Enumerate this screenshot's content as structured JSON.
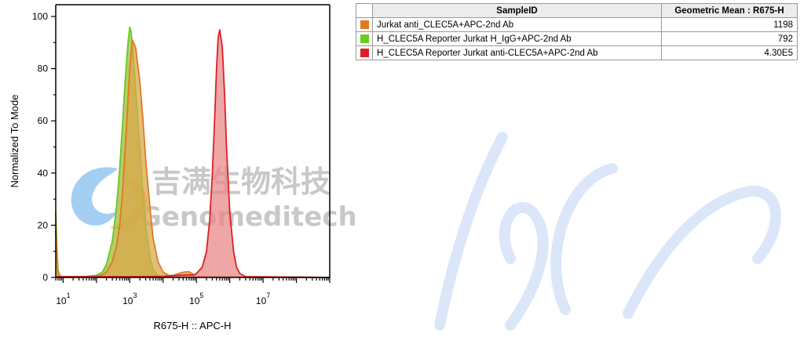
{
  "watermark": {
    "chinese": "吉满生物科技",
    "english": "Genomeditech"
  },
  "table": {
    "headers": {
      "sample": "SampleID",
      "value": "Geometric Mean : R675-H"
    },
    "rows": [
      {
        "color": "#e07a1f",
        "sample": "Jurkat anti_CLEC5A+APC-2nd Ab",
        "value": "1198"
      },
      {
        "color": "#66cc22",
        "sample": "H_CLEC5A Reporter Jurkat H_IgG+APC-2nd Ab",
        "value": "792"
      },
      {
        "color": "#dd1f26",
        "sample": "H_CLEC5A Reporter Jurkat anti-CLEC5A+APC-2nd Ab",
        "value": "4.30E5"
      }
    ]
  },
  "chart_data": {
    "type": "area",
    "title": "",
    "xlabel": "R675-H :: APC-H",
    "ylabel": "Normalized To Mode",
    "xscale": "log",
    "xlim": [
      6,
      1000000000
    ],
    "ylim": [
      0,
      100
    ],
    "xticks": [
      10,
      1000,
      100000,
      10000000
    ],
    "yticks": [
      0,
      20,
      40,
      60,
      80,
      100
    ],
    "grid": false,
    "legend": "table-right",
    "series": [
      {
        "name": "H_CLEC5A Reporter Jurkat H_IgG+APC-2nd Ab",
        "color": "#66cc22",
        "fill": "#a4b83a",
        "x": [
          6,
          6.5,
          7,
          8,
          10,
          20,
          50,
          100,
          150,
          200,
          300,
          400,
          500,
          600,
          700,
          800,
          900,
          1000,
          1100,
          1300,
          1500,
          2000,
          2500,
          3000,
          4000,
          5000,
          7000,
          10000,
          1000000000
        ],
        "y": [
          25,
          12,
          3,
          0.5,
          0.3,
          0.3,
          0.4,
          0.8,
          2,
          5,
          14,
          27,
          42,
          58,
          72,
          83,
          91,
          96,
          94,
          84,
          72,
          50,
          32,
          20,
          8,
          3,
          0.8,
          0.3,
          0
        ]
      },
      {
        "name": "Jurkat anti_CLEC5A+APC-2nd Ab",
        "color": "#e07a1f",
        "fill": "#d9a84a",
        "x": [
          6,
          6.5,
          7,
          8,
          10,
          20,
          50,
          100,
          150,
          200,
          300,
          400,
          500,
          600,
          800,
          1000,
          1200,
          1500,
          2000,
          2500,
          3000,
          4000,
          5000,
          7000,
          10000,
          15000,
          20000,
          30000,
          40000,
          60000,
          80000,
          100000,
          1000000000
        ],
        "y": [
          18,
          9,
          2,
          0.5,
          0.3,
          0.3,
          0.3,
          0.5,
          1,
          2,
          6,
          12,
          20,
          32,
          58,
          80,
          91,
          88,
          75,
          60,
          45,
          27,
          15,
          6,
          2,
          0.7,
          0.8,
          1.5,
          2,
          2.2,
          1.2,
          0.4,
          0
        ]
      },
      {
        "name": "H_CLEC5A Reporter Jurkat anti-CLEC5A+APC-2nd Ab",
        "color": "#dd1f26",
        "fill": "#ea8888",
        "x": [
          6,
          10,
          1000,
          10000,
          30000,
          60000,
          80000,
          100000,
          150000,
          200000,
          250000,
          300000,
          350000,
          400000,
          450000,
          500000,
          600000,
          700000,
          800000,
          1000000,
          1300000,
          1600000,
          2000000,
          3000000,
          1000000000
        ],
        "y": [
          0.3,
          0.3,
          0.3,
          0.4,
          0.8,
          1.0,
          0.9,
          1.5,
          4,
          10,
          22,
          40,
          60,
          80,
          92,
          95,
          88,
          70,
          50,
          25,
          10,
          4,
          1.5,
          0.3,
          0
        ]
      }
    ]
  }
}
